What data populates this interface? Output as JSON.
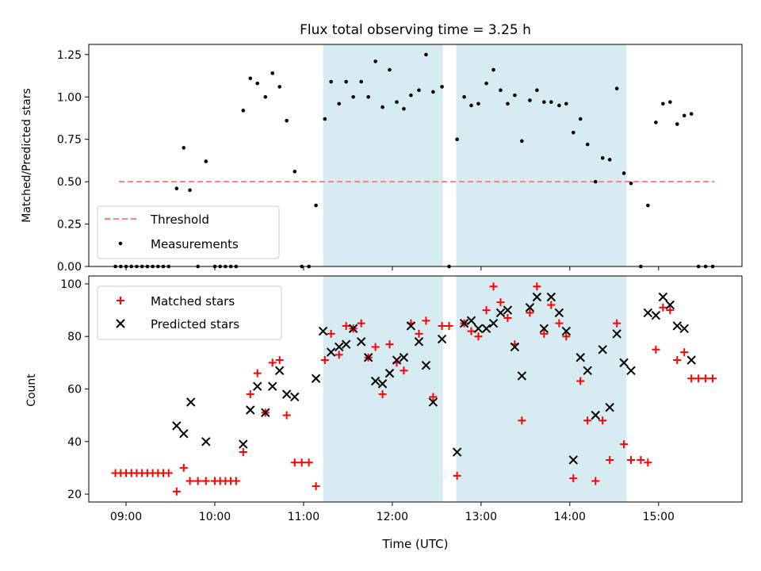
{
  "chart_data": [
    {
      "type": "scatter",
      "title": "Flux total observing time = 3.25 h",
      "xlabel": "",
      "ylabel": "Matched/Predicted stars",
      "ylim": [
        0,
        1.31
      ],
      "yticks": [
        "0.00",
        "0.25",
        "0.50",
        "0.75",
        "1.00",
        "1.25"
      ],
      "ytick_values": [
        0,
        0.25,
        0.5,
        0.75,
        1.0,
        1.25
      ],
      "grid": false,
      "legend_position": "lower-left",
      "threshold": {
        "name": "Threshold",
        "value": 0.5,
        "x_start": 8.92,
        "x_end": 15.63,
        "color": "#ff7f7f"
      },
      "shaded_intervals": [
        [
          11.22,
          12.57
        ],
        [
          12.72,
          14.64
        ]
      ],
      "series": [
        {
          "name": "Measurements",
          "color": "#000000",
          "x": [
            8.88,
            8.94,
            9.0,
            9.06,
            9.12,
            9.18,
            9.24,
            9.3,
            9.36,
            9.42,
            9.48,
            9.57,
            9.65,
            9.72,
            9.81,
            9.9,
            10.0,
            10.06,
            10.12,
            10.18,
            10.24,
            10.32,
            10.4,
            10.48,
            10.57,
            10.65,
            10.73,
            10.81,
            10.9,
            10.98,
            11.06,
            11.14,
            11.24,
            11.31,
            11.4,
            11.48,
            11.56,
            11.65,
            11.73,
            11.81,
            11.89,
            11.97,
            12.05,
            12.13,
            12.21,
            12.3,
            12.38,
            12.46,
            12.56,
            12.64,
            12.73,
            12.81,
            12.89,
            12.97,
            13.06,
            13.14,
            13.22,
            13.3,
            13.38,
            13.46,
            13.55,
            13.63,
            13.71,
            13.79,
            13.88,
            13.96,
            14.04,
            14.12,
            14.2,
            14.29,
            14.37,
            14.45,
            14.53,
            14.61,
            14.69,
            14.8,
            14.88,
            14.97,
            15.05,
            15.13,
            15.21,
            15.29,
            15.37,
            15.45,
            15.53,
            15.61
          ],
          "y": [
            0,
            0,
            0,
            0,
            0,
            0,
            0,
            0,
            0,
            0,
            0,
            0.46,
            0.7,
            0.45,
            0,
            0.62,
            0,
            0,
            0,
            0,
            0,
            0.92,
            1.11,
            1.08,
            1.0,
            1.14,
            1.06,
            0.86,
            0.56,
            0,
            0,
            0.36,
            0.87,
            1.09,
            0.96,
            1.09,
            1.0,
            1.09,
            1.0,
            1.21,
            0.94,
            1.16,
            0.97,
            0.93,
            1.01,
            1.04,
            1.25,
            1.03,
            1.06,
            0,
            0.75,
            1.0,
            0.95,
            0.96,
            1.08,
            1.16,
            1.04,
            0.96,
            1.01,
            0.74,
            0.98,
            1.04,
            0.97,
            0.97,
            0.95,
            0.96,
            0.79,
            0.87,
            0.72,
            0.5,
            0.64,
            0.63,
            1.05,
            0.55,
            0.49,
            0,
            0.36,
            0.85,
            0.96,
            0.97,
            0.84,
            0.89,
            0.9,
            0,
            0,
            0
          ]
        }
      ]
    },
    {
      "type": "scatter",
      "title": "",
      "xlabel": "Time (UTC)",
      "ylabel": "Count",
      "ylim": [
        17,
        103
      ],
      "xlim": [
        8.58,
        15.94
      ],
      "xticks": [
        "09:00",
        "10:00",
        "11:00",
        "12:00",
        "13:00",
        "14:00",
        "15:00"
      ],
      "xtick_values": [
        9,
        10,
        11,
        12,
        13,
        14,
        15
      ],
      "yticks": [
        "20",
        "40",
        "60",
        "80",
        "100"
      ],
      "ytick_values": [
        20,
        40,
        60,
        80,
        100
      ],
      "grid": false,
      "legend_position": "upper-left",
      "shaded_intervals": [
        [
          11.22,
          12.57
        ],
        [
          12.72,
          14.64
        ]
      ],
      "series": [
        {
          "name": "Matched stars",
          "marker": "+",
          "color": "#ff0000",
          "x": [
            8.88,
            8.94,
            9.0,
            9.06,
            9.12,
            9.18,
            9.24,
            9.3,
            9.36,
            9.42,
            9.48,
            9.57,
            9.65,
            9.72,
            9.81,
            9.9,
            10.0,
            10.06,
            10.12,
            10.18,
            10.24,
            10.32,
            10.4,
            10.48,
            10.57,
            10.65,
            10.73,
            10.81,
            10.9,
            10.98,
            11.06,
            11.14,
            11.24,
            11.31,
            11.4,
            11.48,
            11.56,
            11.65,
            11.73,
            11.81,
            11.89,
            11.97,
            12.05,
            12.13,
            12.21,
            12.3,
            12.38,
            12.46,
            12.56,
            12.64,
            12.73,
            12.81,
            12.89,
            12.97,
            13.06,
            13.14,
            13.22,
            13.3,
            13.38,
            13.46,
            13.55,
            13.63,
            13.71,
            13.79,
            13.88,
            13.96,
            14.04,
            14.12,
            14.2,
            14.29,
            14.37,
            14.45,
            14.53,
            14.61,
            14.69,
            14.8,
            14.88,
            14.97,
            15.05,
            15.13,
            15.21,
            15.29,
            15.37,
            15.45,
            15.53,
            15.61
          ],
          "y": [
            28,
            28,
            28,
            28,
            28,
            28,
            28,
            28,
            28,
            28,
            28,
            21,
            30,
            25,
            25,
            25,
            25,
            25,
            25,
            25,
            25,
            36,
            58,
            66,
            51,
            70,
            71,
            50,
            32,
            32,
            32,
            23,
            71,
            81,
            73,
            84,
            83,
            85,
            72,
            76,
            58,
            77,
            70,
            67,
            85,
            81,
            86,
            57,
            84,
            84,
            27,
            85,
            82,
            80,
            90,
            99,
            93,
            87,
            77,
            48,
            89,
            99,
            81,
            92,
            85,
            80,
            26,
            63,
            48,
            25,
            48,
            33,
            85,
            39,
            33,
            33,
            32,
            75,
            91,
            90,
            71,
            74,
            64,
            64,
            64,
            64
          ]
        },
        {
          "name": "Predicted stars",
          "marker": "x",
          "color": "#000000",
          "x": [
            9.57,
            9.65,
            9.73,
            9.9,
            10.32,
            10.4,
            10.48,
            10.57,
            10.65,
            10.73,
            10.81,
            10.9,
            11.14,
            11.22,
            11.31,
            11.4,
            11.48,
            11.56,
            11.65,
            11.73,
            11.81,
            11.89,
            11.97,
            12.05,
            12.13,
            12.21,
            12.3,
            12.38,
            12.46,
            12.56,
            12.73,
            12.81,
            12.89,
            12.97,
            13.06,
            13.14,
            13.22,
            13.3,
            13.38,
            13.46,
            13.55,
            13.63,
            13.71,
            13.79,
            13.88,
            13.96,
            14.04,
            14.12,
            14.2,
            14.29,
            14.37,
            14.45,
            14.53,
            14.61,
            14.69,
            14.88,
            14.97,
            15.05,
            15.13,
            15.21,
            15.29,
            15.37
          ],
          "y": [
            46,
            43,
            55,
            40,
            39,
            52,
            61,
            51,
            61,
            67,
            58,
            57,
            64,
            82,
            74,
            76,
            77,
            83,
            78,
            72,
            63,
            62,
            66,
            71,
            72,
            84,
            78,
            69,
            55,
            79,
            36,
            85,
            86,
            83,
            83,
            85,
            89,
            90,
            76,
            65,
            91,
            95,
            83,
            95,
            89,
            82,
            33,
            72,
            67,
            50,
            75,
            53,
            81,
            70,
            67,
            89,
            88,
            95,
            92,
            84,
            83,
            71
          ]
        }
      ]
    }
  ]
}
